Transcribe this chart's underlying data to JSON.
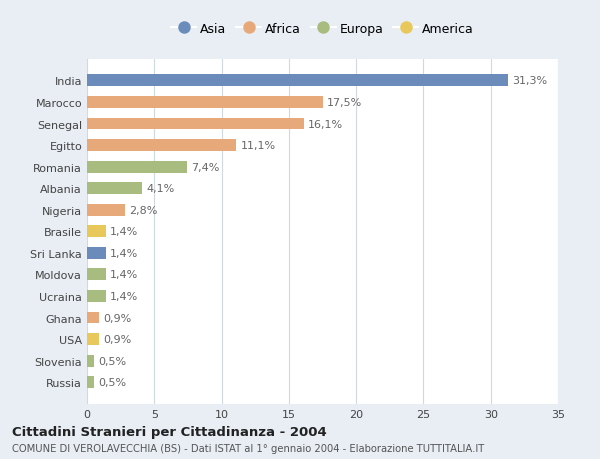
{
  "countries": [
    "India",
    "Marocco",
    "Senegal",
    "Egitto",
    "Romania",
    "Albania",
    "Nigeria",
    "Brasile",
    "Sri Lanka",
    "Moldova",
    "Ucraina",
    "Ghana",
    "USA",
    "Slovenia",
    "Russia"
  ],
  "values": [
    31.3,
    17.5,
    16.1,
    11.1,
    7.4,
    4.1,
    2.8,
    1.4,
    1.4,
    1.4,
    1.4,
    0.9,
    0.9,
    0.5,
    0.5
  ],
  "labels": [
    "31,3%",
    "17,5%",
    "16,1%",
    "11,1%",
    "7,4%",
    "4,1%",
    "2,8%",
    "1,4%",
    "1,4%",
    "1,4%",
    "1,4%",
    "0,9%",
    "0,9%",
    "0,5%",
    "0,5%"
  ],
  "continents": [
    "Asia",
    "Africa",
    "Africa",
    "Africa",
    "Europa",
    "Europa",
    "Africa",
    "America",
    "Asia",
    "Europa",
    "Europa",
    "Africa",
    "America",
    "Europa",
    "Europa"
  ],
  "colors": {
    "Asia": "#6b8cba",
    "Africa": "#e8a97a",
    "Europa": "#a8bc80",
    "America": "#e8c85a"
  },
  "xlim": [
    0,
    35
  ],
  "xticks": [
    0,
    5,
    10,
    15,
    20,
    25,
    30,
    35
  ],
  "title": "Cittadini Stranieri per Cittadinanza - 2004",
  "subtitle": "COMUNE DI VEROLAVECCHIA (BS) - Dati ISTAT al 1° gennaio 2004 - Elaborazione TUTTITALIA.IT",
  "background_color": "#e8eef4",
  "plot_background": "#ffffff",
  "bar_height": 0.55,
  "grid_color": "#d0d8e0",
  "label_fontsize": 8,
  "tick_fontsize": 8,
  "legend_order": [
    "Asia",
    "Africa",
    "Europa",
    "America"
  ]
}
